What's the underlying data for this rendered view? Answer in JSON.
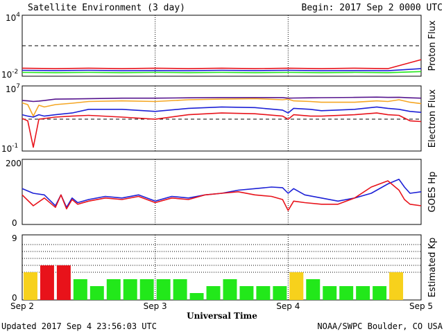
{
  "header": {
    "title": "Satellite Environment (3 day)",
    "begin": "Begin:  2017 Sep 2 0000 UTC"
  },
  "footer": {
    "updated": "Updated 2017 Sep  4 23:56:03 UTC",
    "credit": "NOAA/SWPC Boulder, CO USA"
  },
  "x_axis": {
    "title": "Universal Time",
    "ticks": [
      "Sep 2",
      "Sep 3",
      "Sep 4",
      "Sep 5"
    ]
  },
  "panels": {
    "proton": {
      "ylabel": "Proton Flux",
      "top_base": "10",
      "top_exp": "4",
      "bot_base": "10",
      "bot_exp": "-2"
    },
    "electron": {
      "ylabel": "Electron Flux",
      "top_base": "10",
      "top_exp": "7",
      "bot_base": "10",
      "bot_exp": "-1"
    },
    "goes": {
      "ylabel": "GOES Hp",
      "top": "200",
      "bot": "0"
    },
    "kp": {
      "ylabel": "Estimated Kp",
      "top": "9",
      "bot": "0"
    }
  },
  "colors": {
    "red": "#e8121a",
    "blue": "#1c20d6",
    "green": "#22e81a",
    "orange": "#f5a623",
    "purple": "#55148e",
    "yellow": "#f7d11c",
    "kp_green": "#2ae81f",
    "kp_red": "#e8121a"
  },
  "chart_data": [
    {
      "type": "line",
      "title": "Proton Flux",
      "xlabel": "Universal Time",
      "ylabel": "Proton Flux",
      "x": [
        0,
        6,
        12,
        18,
        24,
        30,
        36,
        42,
        48,
        54,
        60,
        66,
        72
      ],
      "ylim": [
        0.01,
        10000
      ],
      "yscale": "log",
      "threshold": 10,
      "series": [
        {
          "name": "",
          "color": "red",
          "values": [
            0.05,
            0.045,
            0.05,
            0.045,
            0.05,
            0.045,
            0.05,
            0.045,
            0.05,
            0.045,
            0.05,
            0.045,
            0.4
          ]
        },
        {
          "name": "",
          "color": "blue",
          "values": [
            0.03,
            0.028,
            0.03,
            0.027,
            0.028,
            0.027,
            0.03,
            0.028,
            0.03,
            0.027,
            0.028,
            0.027,
            0.045
          ]
        },
        {
          "name": "",
          "color": "green",
          "values": [
            0.018,
            0.017,
            0.018,
            0.017,
            0.018,
            0.017,
            0.018,
            0.017,
            0.018,
            0.017,
            0.018,
            0.017,
            0.022
          ]
        }
      ]
    },
    {
      "type": "line",
      "title": "Electron Flux",
      "xlabel": "Universal Time",
      "ylabel": "Electron Flux",
      "x": [
        0,
        1,
        2,
        3,
        4,
        6,
        9,
        12,
        18,
        24,
        30,
        36,
        42,
        47,
        48,
        49,
        52,
        54,
        60,
        64,
        66,
        68,
        70,
        72
      ],
      "ylim": [
        0.1,
        10000000
      ],
      "yscale": "log",
      "threshold": 1000,
      "series": [
        {
          "name": "",
          "color": "purple",
          "values": [
            200000,
            180000,
            150000,
            170000,
            200000,
            300000,
            320000,
            350000,
            400000,
            400000,
            450000,
            480000,
            480000,
            470000,
            400000,
            420000,
            450000,
            460000,
            500000,
            550000,
            500000,
            520000,
            450000,
            400000
          ]
        },
        {
          "name": "",
          "color": "orange",
          "values": [
            100000,
            60000,
            2000,
            50000,
            30000,
            60000,
            90000,
            150000,
            180000,
            150000,
            250000,
            300000,
            350000,
            250000,
            300000,
            180000,
            150000,
            120000,
            120000,
            180000,
            150000,
            250000,
            120000,
            80000
          ]
        },
        {
          "name": "",
          "color": "blue",
          "values": [
            3000,
            2000,
            1500,
            3000,
            2000,
            3000,
            5000,
            15000,
            15000,
            8000,
            20000,
            30000,
            25000,
            12000,
            5000,
            20000,
            15000,
            10000,
            15000,
            30000,
            20000,
            15000,
            8000,
            6000
          ]
        },
        {
          "name": "",
          "color": "red",
          "values": [
            1000,
            500,
            0.2,
            800,
            1000,
            1500,
            2000,
            2500,
            1500,
            800,
            3000,
            5000,
            4000,
            2000,
            800,
            3000,
            2000,
            2000,
            3000,
            5000,
            3000,
            2500,
            500,
            400
          ]
        }
      ]
    },
    {
      "type": "line",
      "title": "GOES Hp",
      "xlabel": "Universal Time",
      "ylabel": "GOES Hp",
      "x": [
        0,
        2,
        4,
        6,
        7,
        8,
        9,
        10,
        12,
        15,
        18,
        21,
        24,
        27,
        30,
        33,
        36,
        39,
        42,
        45,
        47,
        48,
        49,
        51,
        54,
        57,
        60,
        63,
        66,
        68,
        69,
        70,
        72
      ],
      "ylim": [
        0,
        200
      ],
      "series": [
        {
          "name": "",
          "color": "blue",
          "values": [
            115,
            100,
            95,
            60,
            95,
            55,
            85,
            70,
            80,
            90,
            85,
            95,
            75,
            90,
            85,
            95,
            100,
            110,
            115,
            120,
            118,
            100,
            115,
            95,
            85,
            75,
            85,
            100,
            130,
            145,
            120,
            100,
            105
          ]
        },
        {
          "name": "",
          "color": "red",
          "values": [
            95,
            60,
            85,
            55,
            95,
            50,
            80,
            65,
            75,
            85,
            80,
            90,
            70,
            85,
            80,
            95,
            100,
            105,
            95,
            90,
            80,
            45,
            75,
            70,
            65,
            65,
            85,
            120,
            140,
            110,
            80,
            65,
            60
          ]
        }
      ]
    },
    {
      "type": "bar",
      "title": "Estimated Kp",
      "xlabel": "Universal Time",
      "ylabel": "Estimated Kp",
      "categories": [
        "00",
        "03",
        "06",
        "09",
        "12",
        "15",
        "18",
        "21",
        "00",
        "03",
        "06",
        "09",
        "12",
        "15",
        "18",
        "21",
        "00",
        "03",
        "06",
        "09",
        "12",
        "15",
        "18",
        "21"
      ],
      "values": [
        4,
        5,
        5,
        3,
        2,
        3,
        3,
        3,
        3,
        3,
        1,
        2,
        3,
        2,
        2,
        2,
        4,
        3,
        2,
        2,
        2,
        2,
        4,
        0
      ],
      "bar_colors": [
        "yellow",
        "red",
        "red",
        "green",
        "green",
        "green",
        "green",
        "green",
        "green",
        "green",
        "green",
        "green",
        "green",
        "green",
        "green",
        "green",
        "yellow",
        "green",
        "green",
        "green",
        "green",
        "green",
        "yellow",
        "green"
      ],
      "ylim": [
        0,
        9
      ],
      "gridlines": [
        4,
        5,
        6,
        7,
        8
      ]
    }
  ]
}
